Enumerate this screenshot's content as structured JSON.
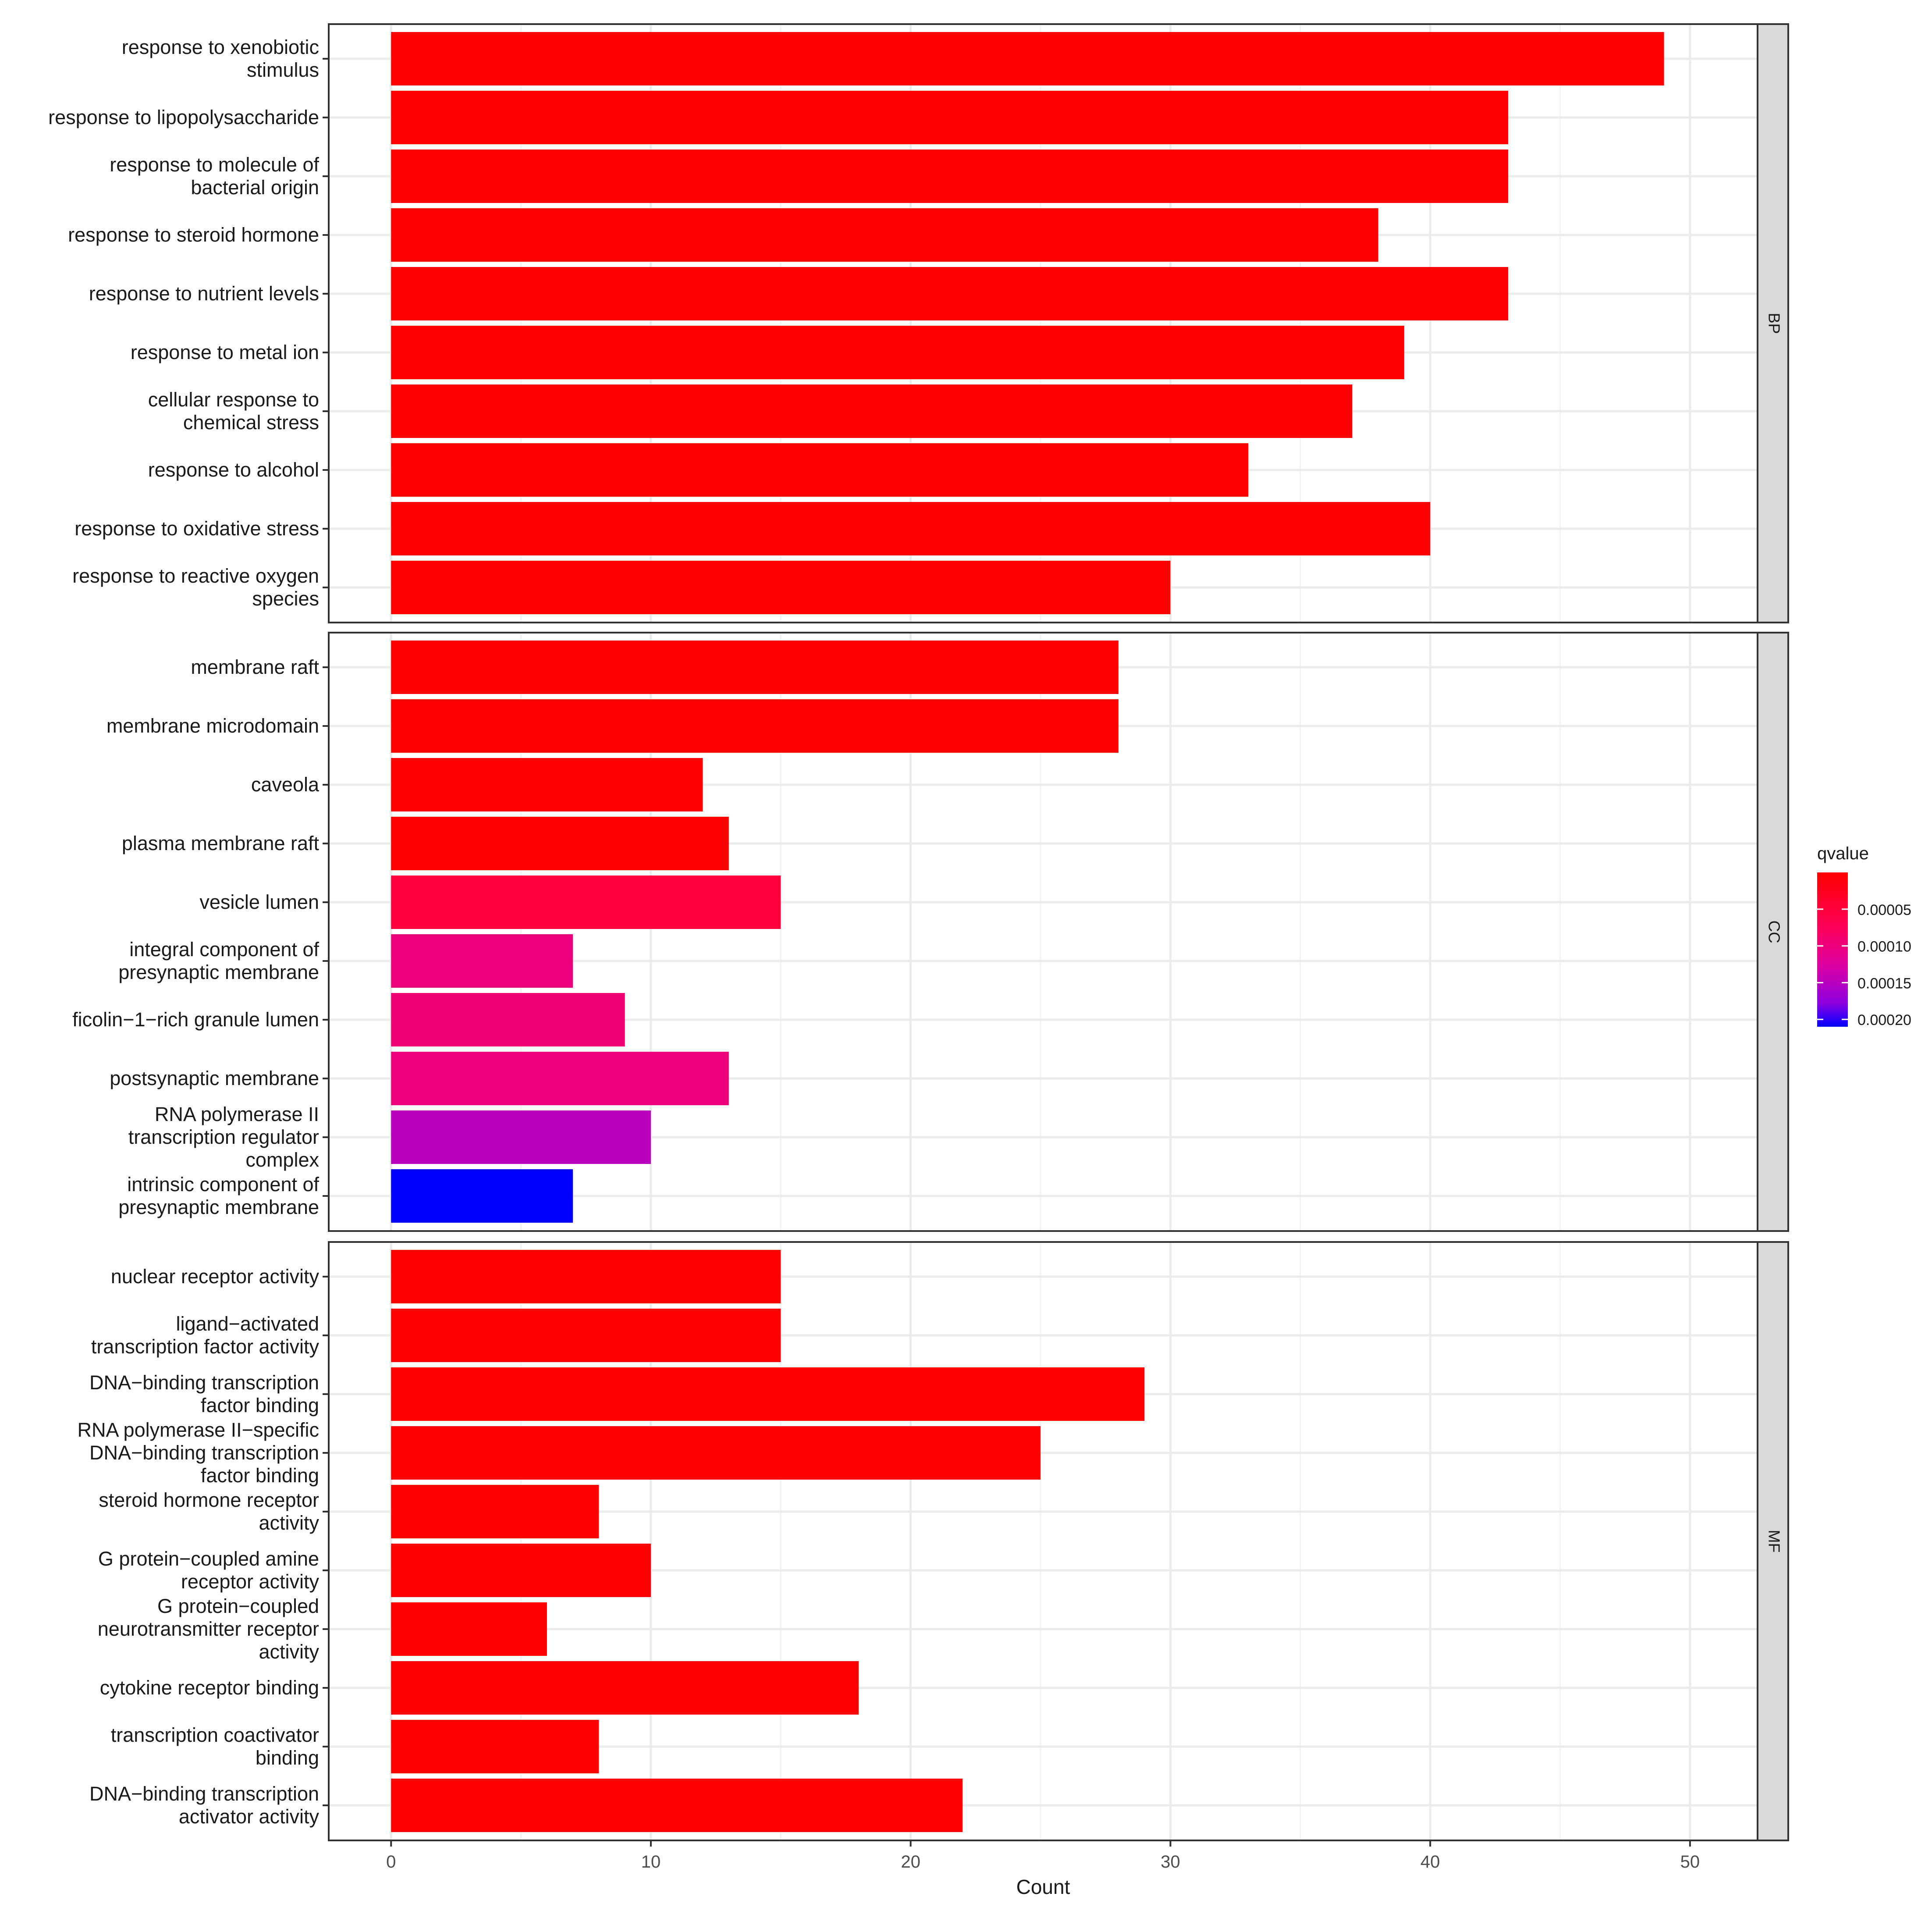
{
  "chart_data": {
    "type": "bar",
    "orientation": "horizontal",
    "xlabel": "Count",
    "xlim": [
      -2.4,
      52.6
    ],
    "xticks": [
      0,
      10,
      20,
      30,
      40,
      50
    ],
    "legend": {
      "title": "qvalue",
      "placement": "right",
      "min": 0,
      "max": 0.00021,
      "ticks": [
        "0.00005",
        "0.00010",
        "0.00015",
        "0.00020"
      ],
      "tick_values": [
        5e-05,
        0.0001,
        0.00015,
        0.0002
      ],
      "colors": {
        "low": "#ff0000",
        "high": "#0000ff"
      }
    },
    "facets": [
      {
        "name": "BP",
        "terms": [
          {
            "label": [
              "response to xenobiotic",
              "stimulus"
            ],
            "count": 49,
            "qvalue": 0.0
          },
          {
            "label": [
              "response to lipopolysaccharide"
            ],
            "count": 43,
            "qvalue": 0.0
          },
          {
            "label": [
              "response to molecule of",
              "bacterial origin"
            ],
            "count": 43,
            "qvalue": 0.0
          },
          {
            "label": [
              "response to steroid hormone"
            ],
            "count": 38,
            "qvalue": 0.0
          },
          {
            "label": [
              "response to nutrient levels"
            ],
            "count": 43,
            "qvalue": 0.0
          },
          {
            "label": [
              "response to metal ion"
            ],
            "count": 39,
            "qvalue": 0.0
          },
          {
            "label": [
              "cellular response to",
              "chemical stress"
            ],
            "count": 37,
            "qvalue": 0.0
          },
          {
            "label": [
              "response to alcohol"
            ],
            "count": 33,
            "qvalue": 0.0
          },
          {
            "label": [
              "response to oxidative stress"
            ],
            "count": 40,
            "qvalue": 0.0
          },
          {
            "label": [
              "response to reactive oxygen",
              "species"
            ],
            "count": 30,
            "qvalue": 0.0
          }
        ]
      },
      {
        "name": "CC",
        "terms": [
          {
            "label": [
              "membrane raft"
            ],
            "count": 28,
            "qvalue": 0.0
          },
          {
            "label": [
              "membrane microdomain"
            ],
            "count": 28,
            "qvalue": 0.0
          },
          {
            "label": [
              "caveola"
            ],
            "count": 12,
            "qvalue": 0.0
          },
          {
            "label": [
              "plasma membrane raft"
            ],
            "count": 13,
            "qvalue": 0.0
          },
          {
            "label": [
              "vesicle lumen"
            ],
            "count": 15,
            "qvalue": 5e-05
          },
          {
            "label": [
              "integral component of",
              "presynaptic membrane"
            ],
            "count": 7,
            "qvalue": 0.0001
          },
          {
            "label": [
              "ficolin−1−rich granule lumen"
            ],
            "count": 9,
            "qvalue": 9.5e-05
          },
          {
            "label": [
              "postsynaptic membrane"
            ],
            "count": 13,
            "qvalue": 0.0001
          },
          {
            "label": [
              "RNA polymerase II",
              "transcription regulator",
              "complex"
            ],
            "count": 10,
            "qvalue": 0.00015
          },
          {
            "label": [
              "intrinsic component of",
              "presynaptic membrane"
            ],
            "count": 7,
            "qvalue": 0.00021
          }
        ]
      },
      {
        "name": "MF",
        "terms": [
          {
            "label": [
              "nuclear receptor activity"
            ],
            "count": 15,
            "qvalue": 0.0
          },
          {
            "label": [
              "ligand−activated",
              "transcription factor activity"
            ],
            "count": 15,
            "qvalue": 0.0
          },
          {
            "label": [
              "DNA−binding transcription",
              "factor binding"
            ],
            "count": 29,
            "qvalue": 0.0
          },
          {
            "label": [
              "RNA polymerase II−specific",
              "DNA−binding transcription",
              "factor binding"
            ],
            "count": 25,
            "qvalue": 0.0
          },
          {
            "label": [
              "steroid hormone receptor",
              "activity"
            ],
            "count": 8,
            "qvalue": 0.0
          },
          {
            "label": [
              "G protein−coupled amine",
              "receptor activity"
            ],
            "count": 10,
            "qvalue": 0.0
          },
          {
            "label": [
              "G protein−coupled",
              "neurotransmitter receptor",
              "activity"
            ],
            "count": 6,
            "qvalue": 0.0
          },
          {
            "label": [
              "cytokine receptor binding"
            ],
            "count": 18,
            "qvalue": 0.0
          },
          {
            "label": [
              "transcription coactivator",
              "binding"
            ],
            "count": 8,
            "qvalue": 0.0
          },
          {
            "label": [
              "DNA−binding transcription",
              "activator activity"
            ],
            "count": 22,
            "qvalue": 0.0
          }
        ]
      }
    ]
  }
}
